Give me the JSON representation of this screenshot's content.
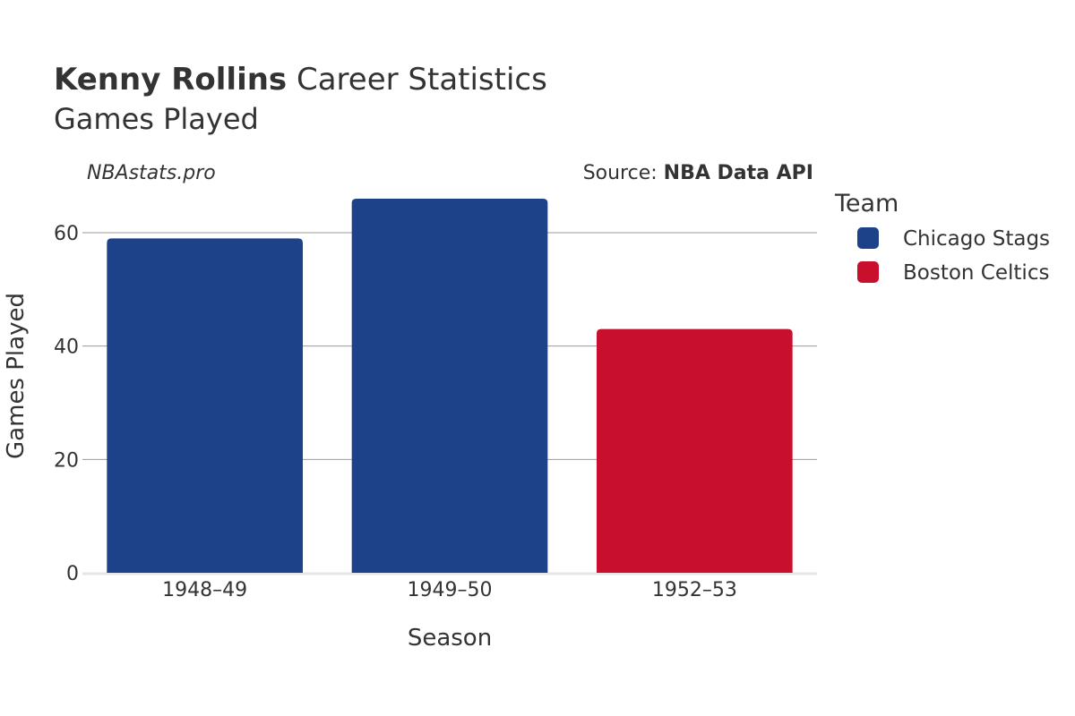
{
  "title": {
    "player_name": "Kenny Rollins",
    "rest": " Career Statistics",
    "subtitle": "Games Played"
  },
  "watermark": "NBAstats.pro",
  "source": {
    "prefix": "Source: ",
    "name": "NBA Data API"
  },
  "legend": {
    "title": "Team",
    "items": [
      {
        "label": "Chicago Stags",
        "color": "#1d4289"
      },
      {
        "label": "Boston Celtics",
        "color": "#c8102e"
      }
    ]
  },
  "chart_data": {
    "type": "bar",
    "title": "Kenny Rollins Career Statistics",
    "subtitle": "Games Played",
    "xlabel": "Season",
    "ylabel": "Games Played",
    "categories": [
      "1948–49",
      "1949–50",
      "1952–53"
    ],
    "values": [
      59,
      66,
      43
    ],
    "bar_teams": [
      "Chicago Stags",
      "Chicago Stags",
      "Boston Celtics"
    ],
    "bar_colors": [
      "#1d4289",
      "#1d4289",
      "#c8102e"
    ],
    "ylim": [
      0,
      70
    ],
    "yticks": [
      0,
      20,
      40,
      60
    ],
    "grid": true,
    "legend_position": "right"
  }
}
